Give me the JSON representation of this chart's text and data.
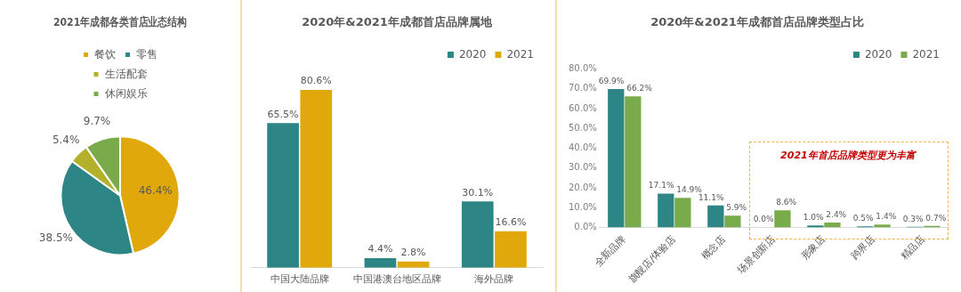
{
  "chart_data": [
    {
      "type": "pie",
      "title": "2021年成都各类首店业态结构",
      "categories": [
        "餐饮",
        "零售",
        "生活配套",
        "休闲娱乐"
      ],
      "values": [
        46.4,
        38.5,
        5.4,
        9.7
      ],
      "colors": [
        "#e0a80b",
        "#2e8585",
        "#b3b02a",
        "#7aab4a"
      ],
      "value_labels": [
        "46.4%",
        "38.5%",
        "5.4%",
        "9.7%"
      ],
      "legend": "top"
    },
    {
      "type": "bar",
      "title": "2020年&2021年成都首店品牌属地",
      "categories": [
        "中国大陆品牌",
        "中国港澳台地区品牌",
        "海外品牌"
      ],
      "series": [
        {
          "name": "2020",
          "color": "#2e8585",
          "values": [
            65.5,
            4.4,
            30.1
          ],
          "value_labels": [
            "65.5%",
            "4.4%",
            "30.1%"
          ]
        },
        {
          "name": "2021",
          "color": "#e0a80b",
          "values": [
            80.6,
            2.8,
            16.6
          ],
          "value_labels": [
            "80.6%",
            "2.8%",
            "16.6%"
          ]
        }
      ],
      "legend": "top right",
      "tick_labels": "x",
      "grid": false
    },
    {
      "type": "bar",
      "title": "2020年&2021年成都首店品牌类型占比",
      "categories": [
        "全新品牌",
        "旗舰店/体验店",
        "概念店",
        "场景创新店",
        "形象店",
        "跨界店",
        "精品店"
      ],
      "series": [
        {
          "name": "2020",
          "color": "#2e8585",
          "values": [
            69.9,
            17.1,
            11.1,
            0.0,
            1.0,
            0.5,
            0.3
          ],
          "value_labels": [
            "69.9%",
            "17.1%",
            "11.1%",
            "0.0%",
            "1.0%",
            "0.5%",
            "0.3%"
          ]
        },
        {
          "name": "2021",
          "color": "#7aab4a",
          "values": [
            66.2,
            14.9,
            5.9,
            8.6,
            2.4,
            1.4,
            0.7
          ],
          "value_labels": [
            "66.2%",
            "14.9%",
            "5.9%",
            "8.6%",
            "2.4%",
            "1.4%",
            "0.7%"
          ]
        }
      ],
      "ylim": [
        0,
        80
      ],
      "yticks": [
        {
          "value": 0,
          "label": "0.0%"
        },
        {
          "value": 10,
          "label": "10.0%"
        },
        {
          "value": 20,
          "label": "20.0%"
        },
        {
          "value": 30,
          "label": "30.0%"
        },
        {
          "value": 40,
          "label": "40.0%"
        },
        {
          "value": 50,
          "label": "50.0%"
        },
        {
          "value": 60,
          "label": "60.0%"
        },
        {
          "value": 70,
          "label": "70.0%"
        },
        {
          "value": 80,
          "label": "80.0%"
        }
      ],
      "annotations": [
        "2021年首店品牌类型更为丰富"
      ],
      "legend": "top right",
      "grid": false
    }
  ]
}
